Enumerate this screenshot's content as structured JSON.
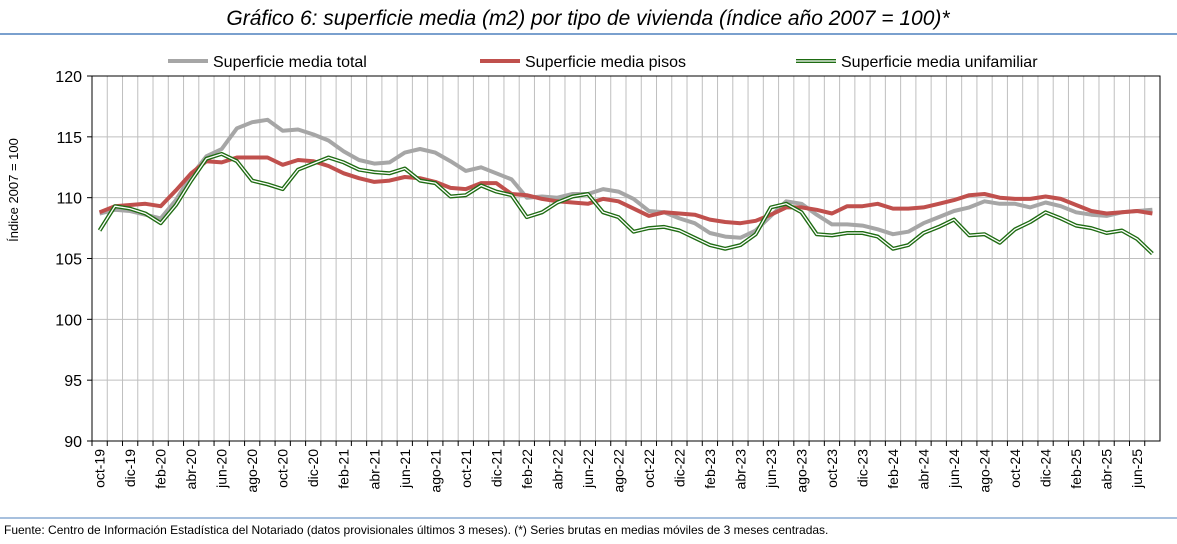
{
  "chart_data": {
    "type": "line",
    "title": "Gráfico 6: superficie media (m2) por tipo de vivienda (índice año 2007 = 100)*",
    "source": "Fuente: Centro de Información Estadística del Notariado (datos provisionales últimos 3 meses). (*) Series brutas en medias móviles de 3 meses centradas.",
    "ylabel": "Índice 2007 = 100",
    "ylim": [
      90,
      120
    ],
    "yticks": [
      90,
      95,
      100,
      105,
      110,
      115,
      120
    ],
    "grid": true,
    "categories": [
      "oct-19",
      null,
      "dic-19",
      null,
      "feb-20",
      null,
      "abr-20",
      null,
      "jun-20",
      null,
      "ago-20",
      null,
      "oct-20",
      null,
      "dic-20",
      null,
      "feb-21",
      null,
      "abr-21",
      null,
      "jun-21",
      null,
      "ago-21",
      null,
      "oct-21",
      null,
      "dic-21",
      null,
      "feb-22",
      null,
      "abr-22",
      null,
      "jun-22",
      null,
      "ago-22",
      null,
      "oct-22",
      null,
      "dic-22",
      null,
      "feb-23",
      null,
      "abr-23",
      null,
      "jun-23",
      null,
      "ago-23",
      null,
      "oct-23",
      null,
      "dic-23",
      null,
      "feb-24",
      null,
      "abr-24",
      null,
      "jun-24",
      null,
      "ago-24",
      null,
      "oct-24",
      null,
      "dic-24",
      null,
      "feb-25",
      null,
      "abr-25",
      null,
      "jun-25",
      null
    ],
    "series": [
      {
        "name": "Superficie media total",
        "color": "#a6a6a6",
        "values": [
          108.7,
          109.0,
          108.9,
          108.6,
          108.3,
          109.8,
          111.8,
          113.4,
          114.0,
          115.7,
          116.2,
          116.4,
          115.5,
          115.6,
          115.2,
          114.7,
          113.8,
          113.1,
          112.8,
          112.9,
          113.7,
          114.0,
          113.7,
          113.0,
          112.2,
          112.5,
          112.0,
          111.5,
          110.0,
          110.1,
          110.0,
          110.3,
          110.3,
          110.7,
          110.5,
          109.9,
          108.9,
          108.8,
          108.3,
          107.9,
          107.1,
          106.8,
          106.7,
          107.3,
          108.5,
          109.7,
          109.5,
          108.6,
          107.8,
          107.8,
          107.7,
          107.4,
          107.0,
          107.2,
          107.9,
          108.4,
          108.9,
          109.2,
          109.7,
          109.5,
          109.5,
          109.2,
          109.6,
          109.3,
          108.8,
          108.6,
          108.5,
          108.8,
          108.9,
          109.0
        ]
      },
      {
        "name": "Superficie media pisos",
        "color": "#c0504d",
        "values": [
          108.8,
          109.3,
          109.4,
          109.5,
          109.3,
          110.6,
          112.0,
          113.0,
          112.9,
          113.3,
          113.3,
          113.3,
          112.7,
          113.1,
          113.0,
          112.6,
          112.0,
          111.6,
          111.3,
          111.4,
          111.7,
          111.6,
          111.3,
          110.8,
          110.7,
          111.2,
          111.2,
          110.3,
          110.2,
          109.9,
          109.7,
          109.6,
          109.5,
          109.9,
          109.7,
          109.1,
          108.5,
          108.8,
          108.7,
          108.6,
          108.2,
          108.0,
          107.9,
          108.1,
          108.6,
          109.2,
          109.2,
          109.0,
          108.7,
          109.3,
          109.3,
          109.5,
          109.1,
          109.1,
          109.2,
          109.5,
          109.8,
          110.2,
          110.3,
          110.0,
          109.9,
          109.9,
          110.1,
          109.9,
          109.4,
          108.9,
          108.7,
          108.8,
          108.9,
          108.7
        ]
      },
      {
        "name": "Superficie media unifamiliar",
        "color": "#1e6b12",
        "values": [
          107.3,
          109.3,
          109.1,
          108.7,
          107.9,
          109.4,
          111.4,
          113.2,
          113.6,
          113.0,
          111.4,
          111.1,
          110.7,
          112.3,
          112.8,
          113.3,
          112.9,
          112.3,
          112.1,
          112.0,
          112.4,
          111.4,
          111.2,
          110.1,
          110.2,
          111.0,
          110.5,
          110.2,
          108.4,
          108.8,
          109.6,
          110.1,
          110.3,
          108.8,
          108.4,
          107.2,
          107.5,
          107.6,
          107.3,
          106.7,
          106.1,
          105.8,
          106.1,
          107.0,
          109.2,
          109.5,
          108.8,
          107.0,
          106.9,
          107.1,
          107.1,
          106.8,
          105.8,
          106.1,
          107.1,
          107.6,
          108.2,
          106.9,
          107.0,
          106.3,
          107.4,
          108.0,
          108.8,
          108.3,
          107.7,
          107.5,
          107.1,
          107.3,
          106.6,
          105.4
        ]
      }
    ]
  }
}
